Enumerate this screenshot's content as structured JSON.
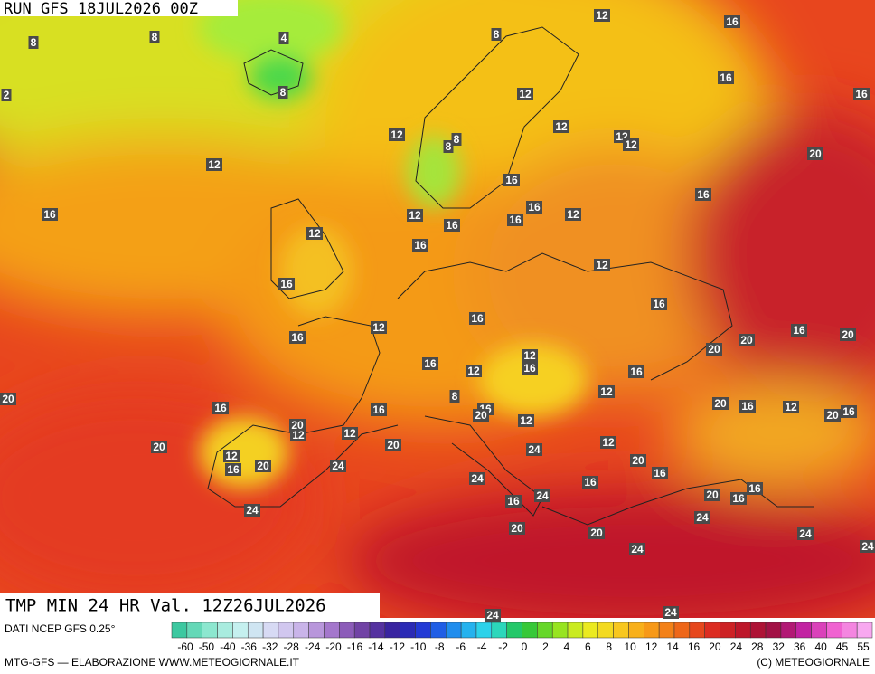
{
  "header": {
    "run": "RUN GFS 18JUL2026 00Z",
    "product": "TMP MIN 24 HR Val. 12Z26JUL2026"
  },
  "map_labels": [
    8,
    8,
    4,
    2,
    8,
    12,
    16,
    8,
    16,
    16,
    12,
    12,
    12,
    12,
    12,
    8,
    8,
    12,
    20,
    16,
    16,
    16,
    12,
    16,
    16,
    16,
    12,
    12,
    16,
    12,
    16,
    16,
    16,
    12,
    16,
    20,
    16,
    20,
    20,
    12,
    16,
    16,
    12,
    16,
    20,
    16,
    8,
    12,
    20,
    16,
    12,
    16,
    16,
    20,
    20,
    16,
    20,
    12,
    12,
    12,
    20,
    20,
    12,
    12,
    16,
    20,
    24,
    24,
    20,
    16,
    24,
    16,
    24,
    16,
    16,
    20,
    16,
    24,
    24,
    20,
    20,
    24,
    24,
    24,
    24,
    24
  ],
  "legend": {
    "source": "DATI NCEP GFS 0.25°",
    "labels": [
      "-60",
      "-50",
      "-40",
      "-36",
      "-32",
      "-28",
      "-24",
      "-20",
      "-16",
      "-14",
      "-12",
      "-10",
      "-8",
      "-6",
      "-4",
      "-2",
      "0",
      "2",
      "4",
      "6",
      "8",
      "10",
      "12",
      "14",
      "16",
      "20",
      "24",
      "28",
      "32",
      "36",
      "40",
      "45",
      "55"
    ]
  },
  "footer": {
    "left": "MTG-GFS — ELABORAZIONE WWW.METEOGIORNALE.IT",
    "right": "(C) METEOGIORNALE"
  }
}
